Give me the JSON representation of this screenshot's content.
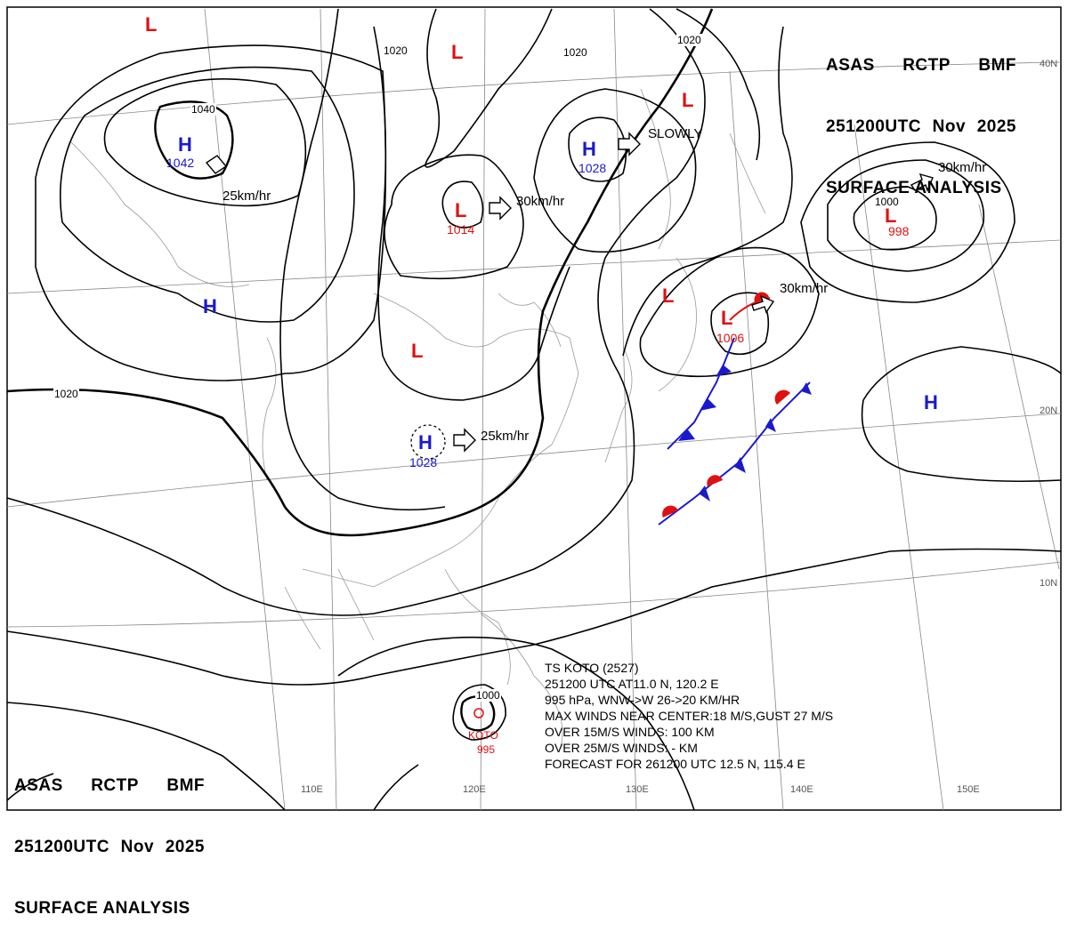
{
  "header": {
    "line1": [
      "ASAS",
      "RCTP",
      "BMF"
    ],
    "line2": [
      "251200UTC",
      "Nov",
      "2025"
    ],
    "line3": "SURFACE ANALYSIS"
  },
  "pressure_centers": [
    {
      "type": "H",
      "value": "1042",
      "name": "h-siberia"
    },
    {
      "type": "H",
      "value": "",
      "name": "h-mongolia"
    },
    {
      "type": "H",
      "value": "1028",
      "name": "h-north-china"
    },
    {
      "type": "H",
      "value": "1028",
      "name": "h-south-china"
    },
    {
      "type": "H",
      "value": "",
      "name": "h-pacific"
    },
    {
      "type": "L",
      "value": "",
      "name": "l-top-left"
    },
    {
      "type": "L",
      "value": "",
      "name": "l-top-center"
    },
    {
      "type": "L",
      "value": "1014",
      "name": "l-mongolia"
    },
    {
      "type": "L",
      "value": "",
      "name": "l-tibet"
    },
    {
      "type": "L",
      "value": "",
      "name": "l-okhotsk"
    },
    {
      "type": "L",
      "value": "",
      "name": "l-japan-sea"
    },
    {
      "type": "L",
      "value": "1006",
      "name": "l-japan"
    },
    {
      "type": "L",
      "value": "998",
      "name": "l-kamchatka"
    }
  ],
  "motion_labels": [
    {
      "text": "25km/hr",
      "name": "motion-siberia"
    },
    {
      "text": "30km/hr",
      "name": "motion-mongolia-low"
    },
    {
      "text": "SLOWLY",
      "name": "motion-manchuria"
    },
    {
      "text": "30km/hr",
      "name": "motion-kamchatka"
    },
    {
      "text": "30km/hr",
      "name": "motion-japan-low"
    },
    {
      "text": "25km/hr",
      "name": "motion-south-china-high"
    }
  ],
  "isobar_labels": [
    "1040",
    "1020",
    "1020",
    "1020",
    "1020",
    "1000",
    "1000"
  ],
  "lat_labels": [
    "40N",
    "20N",
    "10N"
  ],
  "lon_labels": [
    "110E",
    "120E",
    "130E",
    "140E",
    "150E"
  ],
  "typhoon": {
    "value": "1000",
    "name_label": "KOTO",
    "pressure": "995",
    "lines": [
      "TS  KOTO  (2527)",
      "251200 UTC  AT11.0 N, 120.2 E",
      "995 hPa, WNW->W  26->20 KM/HR",
      "MAX WINDS NEAR CENTER:18 M/S,GUST 27 M/S",
      "OVER 15M/S WINDS: 100 KM",
      "OVER 25M/S WINDS: - KM",
      "FORECAST FOR 261200 UTC 12.5 N, 115.4 E"
    ]
  },
  "colors": {
    "high": "#1a1acc",
    "low": "#e01010",
    "cold_front": "#1a1acc",
    "warm_front": "#e01010"
  }
}
